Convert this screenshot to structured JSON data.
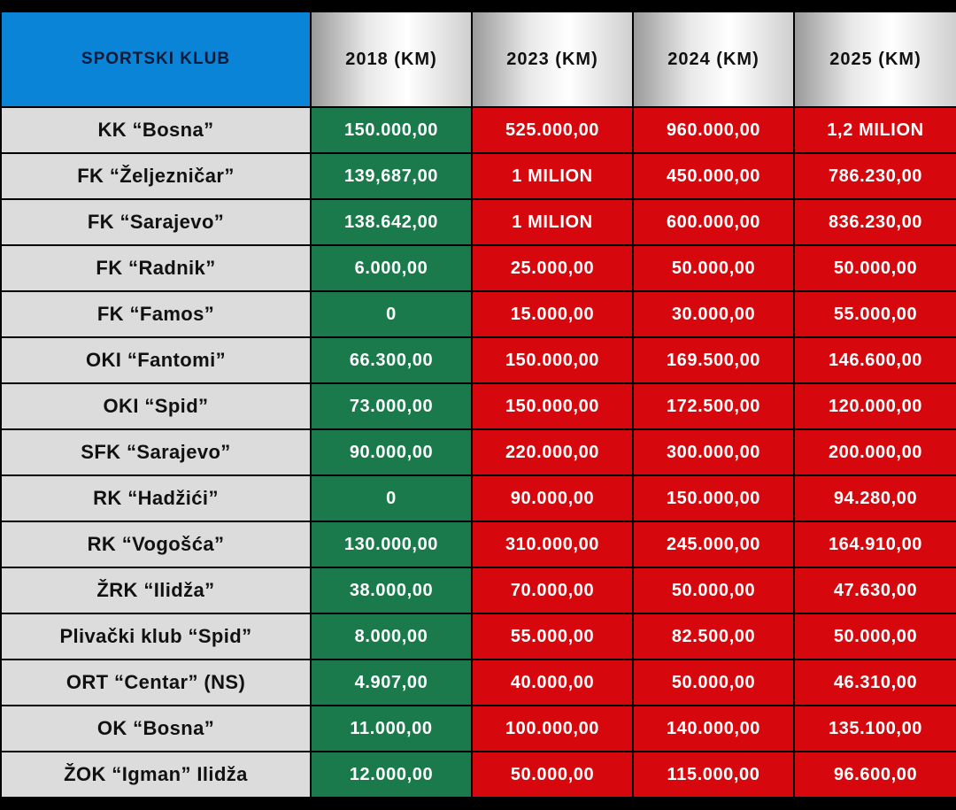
{
  "header": {
    "club": "SPORTSKI KLUB",
    "y2018": "2018 (KM)",
    "y2023": "2023 (KM)",
    "y2024": "2024 (KM)",
    "y2025": "2025 (KM)"
  },
  "colors": {
    "header_club_bg": "#0a84d6",
    "col_2018_bg": "#1a7a4c",
    "col_other_bg": "#d6080d",
    "club_cell_bg": "#dcdcdc"
  },
  "rows": [
    {
      "club": "KK “Bosna”",
      "y2018": "150.000,00",
      "y2023": "525.000,00",
      "y2024": "960.000,00",
      "y2025": "1,2 MILION"
    },
    {
      "club": "FK “Željezničar”",
      "y2018": "139,687,00",
      "y2023": "1 MILION",
      "y2024": "450.000,00",
      "y2025": "786.230,00"
    },
    {
      "club": "FK “Sarajevo”",
      "y2018": "138.642,00",
      "y2023": "1 MILION",
      "y2024": "600.000,00",
      "y2025": "836.230,00"
    },
    {
      "club": "FK “Radnik”",
      "y2018": "6.000,00",
      "y2023": "25.000,00",
      "y2024": "50.000,00",
      "y2025": "50.000,00"
    },
    {
      "club": "FK “Famos”",
      "y2018": "0",
      "y2023": "15.000,00",
      "y2024": "30.000,00",
      "y2025": "55.000,00"
    },
    {
      "club": "OKI “Fantomi”",
      "y2018": "66.300,00",
      "y2023": "150.000,00",
      "y2024": "169.500,00",
      "y2025": "146.600,00"
    },
    {
      "club": "OKI “Spid”",
      "y2018": "73.000,00",
      "y2023": "150.000,00",
      "y2024": "172.500,00",
      "y2025": "120.000,00"
    },
    {
      "club": "SFK “Sarajevo”",
      "y2018": "90.000,00",
      "y2023": "220.000,00",
      "y2024": "300.000,00",
      "y2025": "200.000,00"
    },
    {
      "club": "RK “Hadžići”",
      "y2018": "0",
      "y2023": "90.000,00",
      "y2024": "150.000,00",
      "y2025": "94.280,00"
    },
    {
      "club": "RK “Vogošća”",
      "y2018": "130.000,00",
      "y2023": "310.000,00",
      "y2024": "245.000,00",
      "y2025": "164.910,00"
    },
    {
      "club": "ŽRK “Ilidža”",
      "y2018": "38.000,00",
      "y2023": "70.000,00",
      "y2024": "50.000,00",
      "y2025": "47.630,00"
    },
    {
      "club": "Plivački klub “Spid”",
      "y2018": "8.000,00",
      "y2023": "55.000,00",
      "y2024": "82.500,00",
      "y2025": "50.000,00"
    },
    {
      "club": "ORT “Centar” (NS)",
      "y2018": "4.907,00",
      "y2023": "40.000,00",
      "y2024": "50.000,00",
      "y2025": "46.310,00"
    },
    {
      "club": "OK “Bosna”",
      "y2018": "11.000,00",
      "y2023": "100.000,00",
      "y2024": "140.000,00",
      "y2025": "135.100,00"
    },
    {
      "club": "ŽOK “Igman” Ilidža",
      "y2018": "12.000,00",
      "y2023": "50.000,00",
      "y2024": "115.000,00",
      "y2025": "96.600,00"
    }
  ]
}
